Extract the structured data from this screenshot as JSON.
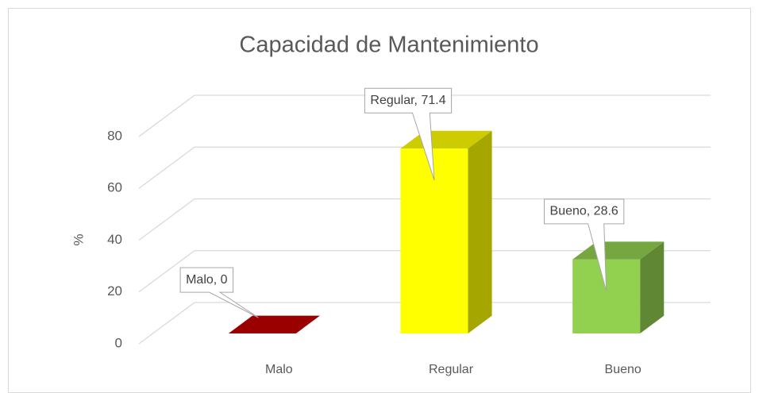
{
  "chart_data": {
    "type": "bar3d",
    "title": "Capacidad de Mantenimiento",
    "y_label": "%",
    "categories": [
      "Malo",
      "Regular",
      "Bueno"
    ],
    "values": [
      0,
      71.4,
      28.6
    ],
    "value_labels": [
      "Malo, 0",
      "Regular, 71.4",
      "Bueno, 28.6"
    ],
    "colors": [
      "#c00000",
      "#ffff00",
      "#92d050"
    ],
    "ylim": [
      0,
      80
    ],
    "yticks": [
      0,
      20,
      40,
      60,
      80
    ],
    "grid": true
  }
}
